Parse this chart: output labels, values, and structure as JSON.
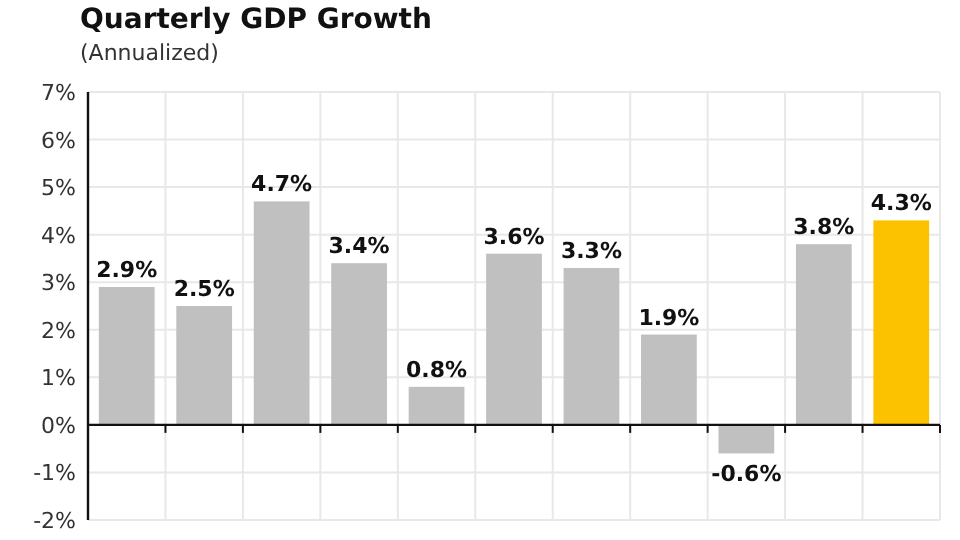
{
  "chart_data": {
    "type": "bar",
    "title": "Quarterly GDP Growth",
    "subtitle": "(Annualized)",
    "categories": [
      null,
      null,
      null,
      null,
      null,
      null,
      null,
      null,
      null,
      null,
      null
    ],
    "values": [
      2.9,
      2.5,
      4.7,
      3.4,
      0.8,
      3.6,
      3.3,
      1.9,
      -0.6,
      3.8,
      4.3
    ],
    "colors": [
      "#c0c0c0",
      "#c0c0c0",
      "#c0c0c0",
      "#c0c0c0",
      "#c0c0c0",
      "#c0c0c0",
      "#c0c0c0",
      "#c0c0c0",
      "#c0c0c0",
      "#c0c0c0",
      "#fcc200"
    ],
    "value_labels": [
      "2.9%",
      "2.5%",
      "4.7%",
      "3.4%",
      "0.8%",
      "3.6%",
      "3.3%",
      "1.9%",
      "-0.6%",
      "3.8%",
      "4.3%"
    ],
    "ylim": [
      -2,
      7
    ],
    "yticks": [
      {
        "value": -2,
        "label": "-2%"
      },
      {
        "value": -1,
        "label": "-1%"
      },
      {
        "value": 0,
        "label": "0%"
      },
      {
        "value": 1,
        "label": "1%"
      },
      {
        "value": 2,
        "label": "2%"
      },
      {
        "value": 3,
        "label": "3%"
      },
      {
        "value": 4,
        "label": "4%"
      },
      {
        "value": 5,
        "label": "5%"
      },
      {
        "value": 6,
        "label": "6%"
      },
      {
        "value": 7,
        "label": "7%"
      }
    ],
    "grid": true
  }
}
